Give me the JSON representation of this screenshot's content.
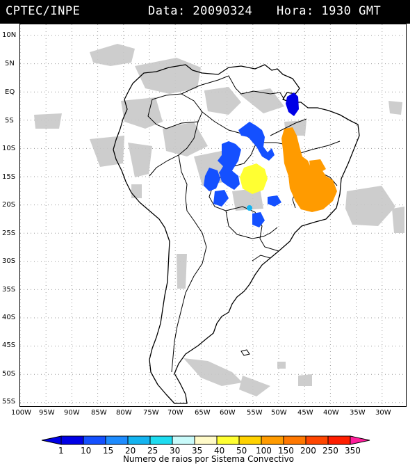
{
  "header": {
    "source": "CPTEC/INPE",
    "date_text": "Data: 20090324",
    "time_text": "Hora: 1930 GMT"
  },
  "map": {
    "lat_labels": [
      "10N",
      "5N",
      "EQ",
      "5S",
      "10S",
      "15S",
      "20S",
      "25S",
      "30S",
      "35S",
      "40S",
      "45S",
      "50S",
      "55S"
    ],
    "lon_labels": [
      "100W",
      "95W",
      "90W",
      "85W",
      "80W",
      "75W",
      "70W",
      "65W",
      "60W",
      "55W",
      "50W",
      "45W",
      "40W",
      "35W",
      "30W"
    ],
    "colors": {
      "cloud": "#c8c8c8",
      "outline": "#000000",
      "grid": "#999999"
    }
  },
  "legend": {
    "values": [
      "1",
      "10",
      "15",
      "20",
      "25",
      "30",
      "35",
      "40",
      "50",
      "100",
      "150",
      "200",
      "250",
      "350"
    ],
    "colors": [
      "#0000e6",
      "#1450ff",
      "#1e8cff",
      "#14b4f0",
      "#1edcf0",
      "#c8fafa",
      "#fffac8",
      "#ffff32",
      "#ffd200",
      "#ff9b00",
      "#ff7800",
      "#ff4600",
      "#ff1e00",
      "#ff1e9b"
    ],
    "caption": "Numero de raios por Sistema Convectivo"
  },
  "systems": [
    {
      "name": "amapa-system",
      "color": "#0000e6"
    },
    {
      "name": "para-system",
      "color": "#1450ff"
    },
    {
      "name": "goias-system",
      "color": "#ffff32"
    },
    {
      "name": "bahia-system",
      "color": "#ff9b00"
    }
  ]
}
